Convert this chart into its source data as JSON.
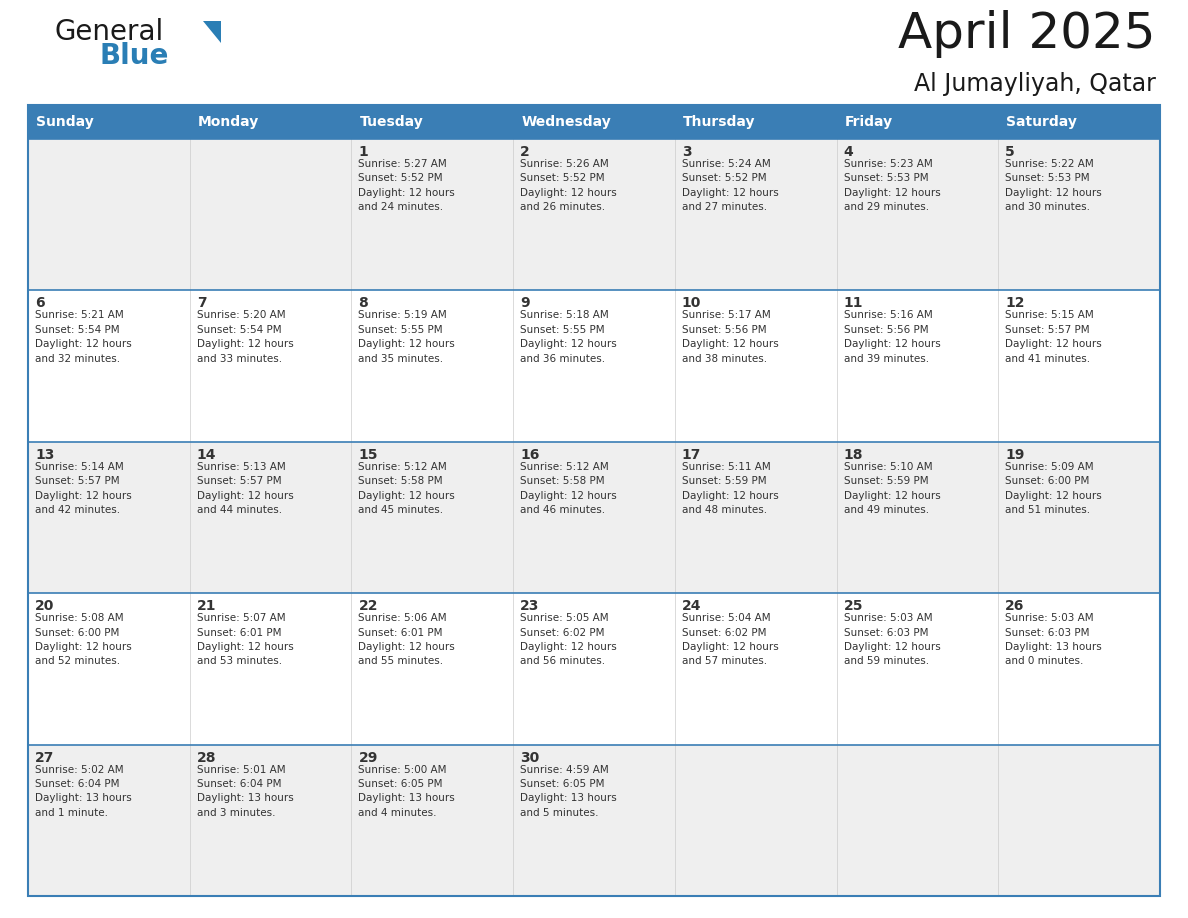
{
  "title": "April 2025",
  "subtitle": "Al Jumayliyah, Qatar",
  "header_color": "#3A7EB5",
  "header_text_color": "#FFFFFF",
  "cell_bg_light": "#EFEFEF",
  "cell_bg_white": "#FFFFFF",
  "text_color": "#333333",
  "border_color": "#3A7EB5",
  "days_of_week": [
    "Sunday",
    "Monday",
    "Tuesday",
    "Wednesday",
    "Thursday",
    "Friday",
    "Saturday"
  ],
  "weeks": [
    [
      {
        "day": "",
        "info": ""
      },
      {
        "day": "",
        "info": ""
      },
      {
        "day": "1",
        "info": "Sunrise: 5:27 AM\nSunset: 5:52 PM\nDaylight: 12 hours\nand 24 minutes."
      },
      {
        "day": "2",
        "info": "Sunrise: 5:26 AM\nSunset: 5:52 PM\nDaylight: 12 hours\nand 26 minutes."
      },
      {
        "day": "3",
        "info": "Sunrise: 5:24 AM\nSunset: 5:52 PM\nDaylight: 12 hours\nand 27 minutes."
      },
      {
        "day": "4",
        "info": "Sunrise: 5:23 AM\nSunset: 5:53 PM\nDaylight: 12 hours\nand 29 minutes."
      },
      {
        "day": "5",
        "info": "Sunrise: 5:22 AM\nSunset: 5:53 PM\nDaylight: 12 hours\nand 30 minutes."
      }
    ],
    [
      {
        "day": "6",
        "info": "Sunrise: 5:21 AM\nSunset: 5:54 PM\nDaylight: 12 hours\nand 32 minutes."
      },
      {
        "day": "7",
        "info": "Sunrise: 5:20 AM\nSunset: 5:54 PM\nDaylight: 12 hours\nand 33 minutes."
      },
      {
        "day": "8",
        "info": "Sunrise: 5:19 AM\nSunset: 5:55 PM\nDaylight: 12 hours\nand 35 minutes."
      },
      {
        "day": "9",
        "info": "Sunrise: 5:18 AM\nSunset: 5:55 PM\nDaylight: 12 hours\nand 36 minutes."
      },
      {
        "day": "10",
        "info": "Sunrise: 5:17 AM\nSunset: 5:56 PM\nDaylight: 12 hours\nand 38 minutes."
      },
      {
        "day": "11",
        "info": "Sunrise: 5:16 AM\nSunset: 5:56 PM\nDaylight: 12 hours\nand 39 minutes."
      },
      {
        "day": "12",
        "info": "Sunrise: 5:15 AM\nSunset: 5:57 PM\nDaylight: 12 hours\nand 41 minutes."
      }
    ],
    [
      {
        "day": "13",
        "info": "Sunrise: 5:14 AM\nSunset: 5:57 PM\nDaylight: 12 hours\nand 42 minutes."
      },
      {
        "day": "14",
        "info": "Sunrise: 5:13 AM\nSunset: 5:57 PM\nDaylight: 12 hours\nand 44 minutes."
      },
      {
        "day": "15",
        "info": "Sunrise: 5:12 AM\nSunset: 5:58 PM\nDaylight: 12 hours\nand 45 minutes."
      },
      {
        "day": "16",
        "info": "Sunrise: 5:12 AM\nSunset: 5:58 PM\nDaylight: 12 hours\nand 46 minutes."
      },
      {
        "day": "17",
        "info": "Sunrise: 5:11 AM\nSunset: 5:59 PM\nDaylight: 12 hours\nand 48 minutes."
      },
      {
        "day": "18",
        "info": "Sunrise: 5:10 AM\nSunset: 5:59 PM\nDaylight: 12 hours\nand 49 minutes."
      },
      {
        "day": "19",
        "info": "Sunrise: 5:09 AM\nSunset: 6:00 PM\nDaylight: 12 hours\nand 51 minutes."
      }
    ],
    [
      {
        "day": "20",
        "info": "Sunrise: 5:08 AM\nSunset: 6:00 PM\nDaylight: 12 hours\nand 52 minutes."
      },
      {
        "day": "21",
        "info": "Sunrise: 5:07 AM\nSunset: 6:01 PM\nDaylight: 12 hours\nand 53 minutes."
      },
      {
        "day": "22",
        "info": "Sunrise: 5:06 AM\nSunset: 6:01 PM\nDaylight: 12 hours\nand 55 minutes."
      },
      {
        "day": "23",
        "info": "Sunrise: 5:05 AM\nSunset: 6:02 PM\nDaylight: 12 hours\nand 56 minutes."
      },
      {
        "day": "24",
        "info": "Sunrise: 5:04 AM\nSunset: 6:02 PM\nDaylight: 12 hours\nand 57 minutes."
      },
      {
        "day": "25",
        "info": "Sunrise: 5:03 AM\nSunset: 6:03 PM\nDaylight: 12 hours\nand 59 minutes."
      },
      {
        "day": "26",
        "info": "Sunrise: 5:03 AM\nSunset: 6:03 PM\nDaylight: 13 hours\nand 0 minutes."
      }
    ],
    [
      {
        "day": "27",
        "info": "Sunrise: 5:02 AM\nSunset: 6:04 PM\nDaylight: 13 hours\nand 1 minute."
      },
      {
        "day": "28",
        "info": "Sunrise: 5:01 AM\nSunset: 6:04 PM\nDaylight: 13 hours\nand 3 minutes."
      },
      {
        "day": "29",
        "info": "Sunrise: 5:00 AM\nSunset: 6:05 PM\nDaylight: 13 hours\nand 4 minutes."
      },
      {
        "day": "30",
        "info": "Sunrise: 4:59 AM\nSunset: 6:05 PM\nDaylight: 13 hours\nand 5 minutes."
      },
      {
        "day": "",
        "info": ""
      },
      {
        "day": "",
        "info": ""
      },
      {
        "day": "",
        "info": ""
      }
    ]
  ],
  "logo_color_general": "#1A1A1A",
  "logo_color_blue": "#2A7EB5",
  "logo_triangle_color": "#2A7EB5"
}
